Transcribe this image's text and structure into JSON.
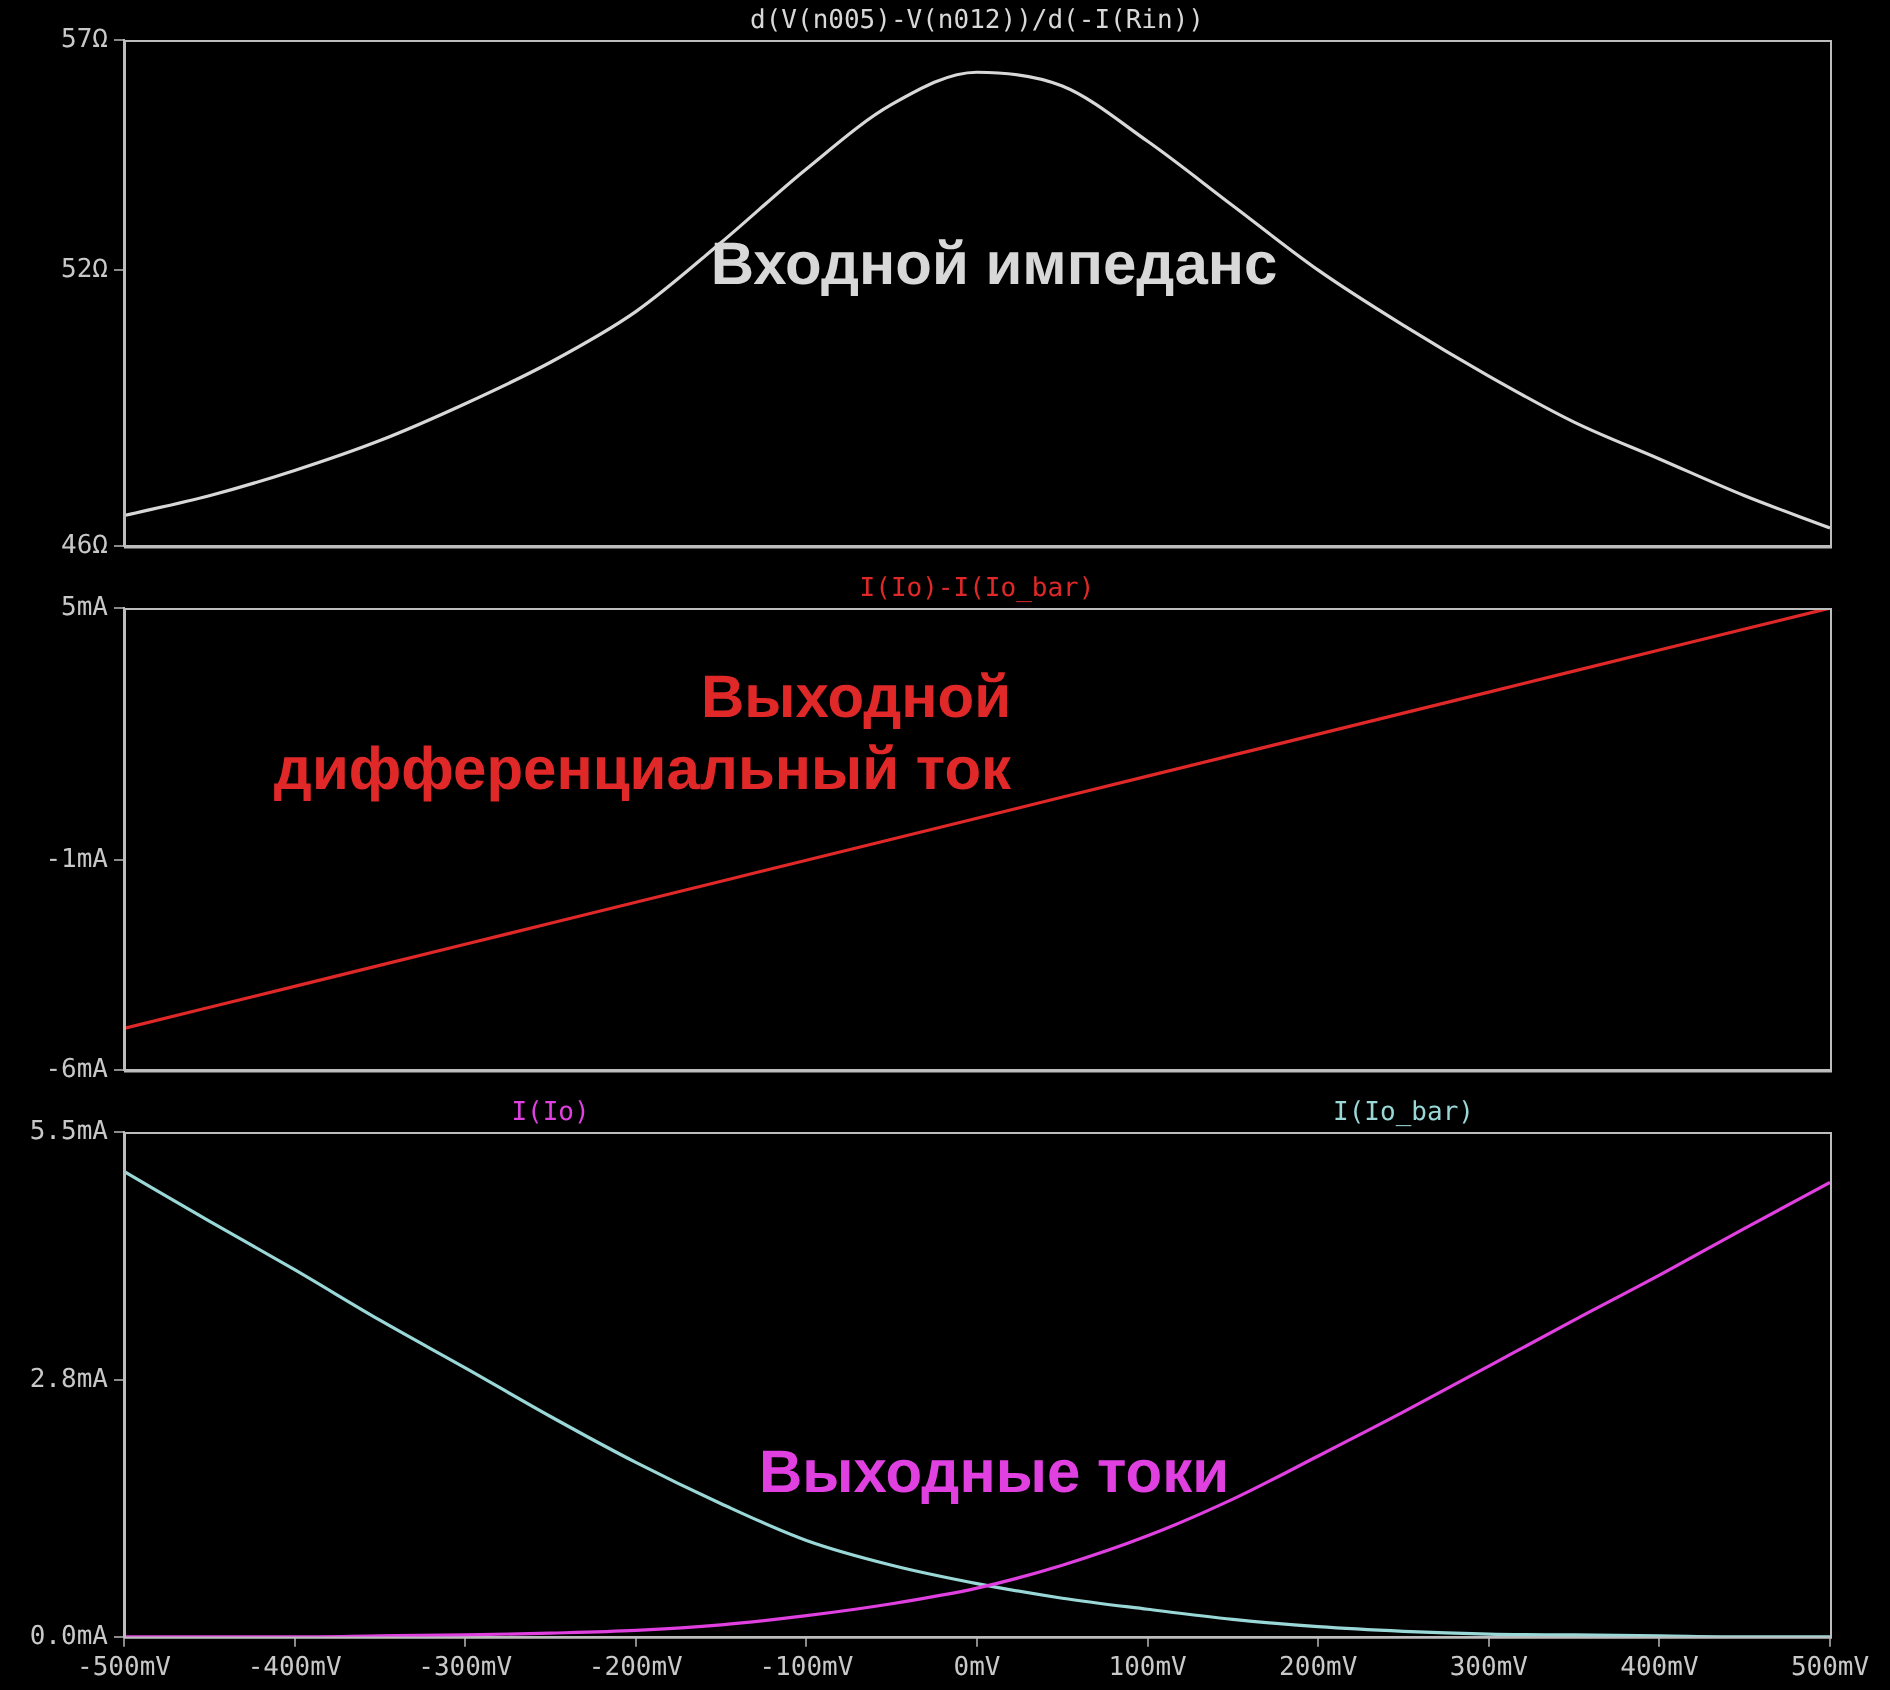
{
  "chart_data": [
    {
      "type": "line",
      "x": [
        -500,
        -450,
        -400,
        -350,
        -300,
        -250,
        -200,
        -150,
        -100,
        -50,
        0,
        50,
        100,
        150,
        200,
        250,
        300,
        350,
        400,
        450,
        500
      ],
      "series": [
        {
          "name": "d(V(n005)-V(n012))/d(-I(Rin))",
          "color": "#d8d8d8",
          "values": [
            46.67,
            47.1,
            47.65,
            48.3,
            49.1,
            50.0,
            51.1,
            52.6,
            54.2,
            55.6,
            56.3,
            56.0,
            54.8,
            53.4,
            52.0,
            50.8,
            49.7,
            48.7,
            47.9,
            47.1,
            46.4
          ]
        }
      ],
      "xlim": [
        -500,
        500
      ],
      "ylim": [
        46,
        57
      ],
      "yticks": [
        {
          "value": 46,
          "label": "46Ω"
        },
        {
          "value": 52,
          "label": "52Ω"
        },
        {
          "value": 57,
          "label": "57Ω"
        }
      ],
      "tick_labels": "y",
      "legend": "top",
      "grid": false,
      "marker": "none",
      "line_style": "solid",
      "annotations": [
        "Входной импеданс"
      ]
    },
    {
      "type": "line",
      "x": [
        -500,
        -400,
        -300,
        -200,
        -100,
        0,
        100,
        200,
        300,
        400,
        500
      ],
      "series": [
        {
          "name": "I(Io)-I(Io_bar)",
          "color": "#e02828",
          "values": [
            -5.0,
            -4.0,
            -3.0,
            -2.0,
            -1.0,
            0.0,
            1.0,
            2.0,
            3.0,
            4.0,
            5.0
          ]
        }
      ],
      "xlim": [
        -500,
        500
      ],
      "ylim": [
        -6,
        5
      ],
      "yticks": [
        {
          "value": -6,
          "label": "-6mA"
        },
        {
          "value": -1,
          "label": "-1mA"
        },
        {
          "value": 5,
          "label": "5mA"
        }
      ],
      "tick_labels": "y",
      "legend": "top",
      "grid": false,
      "marker": "none",
      "line_style": "solid",
      "annotations": [
        "Выходной дифференциальный ток"
      ]
    },
    {
      "type": "line",
      "x": [
        -500,
        -450,
        -400,
        -350,
        -300,
        -250,
        -200,
        -150,
        -100,
        -50,
        0,
        50,
        100,
        150,
        200,
        250,
        300,
        350,
        400,
        450,
        500
      ],
      "series": [
        {
          "name": "I(Io)",
          "color": "#e040e0",
          "values": [
            0.0,
            0.0,
            0.0,
            0.01,
            0.02,
            0.04,
            0.07,
            0.13,
            0.23,
            0.36,
            0.53,
            0.78,
            1.1,
            1.5,
            1.97,
            2.45,
            2.95,
            3.45,
            3.94,
            4.45,
            4.95
          ]
        },
        {
          "name": "I(Io_bar)",
          "color": "#9ad8d8",
          "values": [
            5.07,
            4.53,
            4.0,
            3.45,
            2.93,
            2.4,
            1.9,
            1.45,
            1.05,
            0.78,
            0.58,
            0.42,
            0.3,
            0.19,
            0.11,
            0.06,
            0.03,
            0.02,
            0.01,
            0.0,
            0.0
          ]
        }
      ],
      "xlim": [
        -500,
        500
      ],
      "ylim": [
        0,
        5.5
      ],
      "xticks": [
        {
          "value": -500,
          "label": "-500mV"
        },
        {
          "value": -400,
          "label": "-400mV"
        },
        {
          "value": -300,
          "label": "-300mV"
        },
        {
          "value": -200,
          "label": "-200mV"
        },
        {
          "value": -100,
          "label": "-100mV"
        },
        {
          "value": 0,
          "label": "0mV"
        },
        {
          "value": 100,
          "label": "100mV"
        },
        {
          "value": 200,
          "label": "200mV"
        },
        {
          "value": 300,
          "label": "300mV"
        },
        {
          "value": 400,
          "label": "400mV"
        },
        {
          "value": 500,
          "label": "500mV"
        }
      ],
      "yticks": [
        {
          "value": 0,
          "label": "0.0mA"
        },
        {
          "value": 2.8,
          "label": "2.8mA"
        },
        {
          "value": 5.5,
          "label": "5.5mA"
        }
      ],
      "legend": "top",
      "grid": false,
      "marker": "none",
      "line_style": "solid",
      "annotations": [
        "Выходные токи"
      ]
    }
  ]
}
